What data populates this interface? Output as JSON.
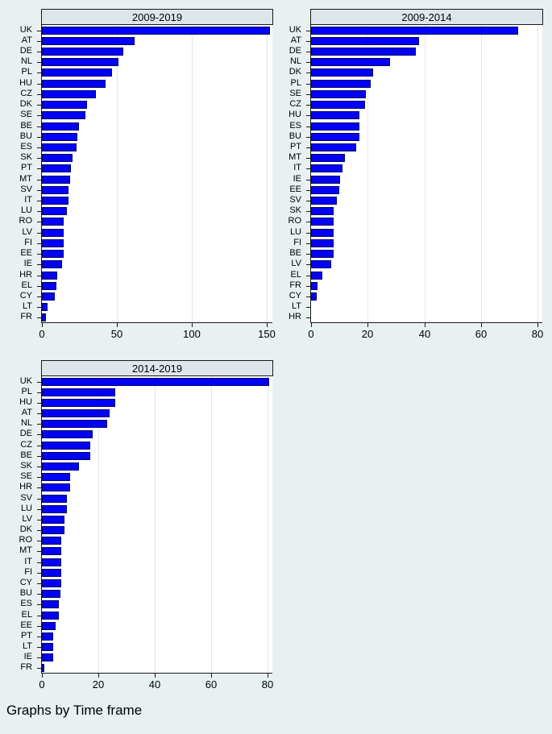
{
  "figure": {
    "note": "Graphs by Time frame",
    "background_color": "#e8f0f2",
    "strip_color": "#dde7eb",
    "gridline_color": "#dee8eb",
    "bar_color": "#0202f5",
    "bar_border_color": "#000066"
  },
  "chart_data": [
    {
      "type": "bar",
      "orientation": "horizontal",
      "title": "2009-2019",
      "categories": [
        "UK",
        "AT",
        "DE",
        "NL",
        "PL",
        "HU",
        "CZ",
        "DK",
        "SE",
        "BE",
        "BU",
        "ES",
        "SK",
        "PT",
        "MT",
        "SV",
        "IT",
        "LU",
        "RO",
        "LV",
        "FI",
        "EE",
        "IE",
        "HR",
        "EL",
        "CY",
        "LT",
        "FR"
      ],
      "values": [
        152.5,
        62,
        54.5,
        51,
        47,
        42.5,
        36,
        30,
        29,
        25,
        23.5,
        23,
        20.5,
        19.5,
        19,
        18,
        17.8,
        16.8,
        14.8,
        14.7,
        14.6,
        14.5,
        13.5,
        10,
        9.9,
        8.7,
        3.6,
        2.7
      ],
      "xticks": [
        0,
        50,
        100,
        150
      ],
      "xlim": [
        0,
        154
      ],
      "xlabel": "",
      "ylabel": "",
      "grid": true,
      "legend": "none"
    },
    {
      "type": "bar",
      "orientation": "horizontal",
      "title": "2009-2014",
      "categories": [
        "UK",
        "AT",
        "DE",
        "NL",
        "DK",
        "PL",
        "SE",
        "CZ",
        "HU",
        "ES",
        "BU",
        "PT",
        "MT",
        "IT",
        "IE",
        "EE",
        "SV",
        "SK",
        "RO",
        "LU",
        "FI",
        "BE",
        "LV",
        "EL",
        "FR",
        "CY",
        "LT",
        "HR"
      ],
      "values": [
        73,
        38,
        37,
        28,
        22,
        21,
        19.2,
        19,
        17.2,
        17.1,
        17,
        16,
        12,
        11,
        10.1,
        10,
        9.1,
        8.1,
        8,
        8,
        8,
        8,
        7,
        4,
        2.2,
        2.1,
        0,
        0
      ],
      "xticks": [
        0,
        20,
        40,
        60,
        80
      ],
      "xlim": [
        0,
        81.6
      ],
      "xlabel": "",
      "ylabel": "",
      "grid": true,
      "legend": "none"
    },
    {
      "type": "bar",
      "orientation": "horizontal",
      "title": "2014-2019",
      "categories": [
        "UK",
        "PL",
        "HU",
        "AT",
        "NL",
        "DE",
        "CZ",
        "BE",
        "SK",
        "SE",
        "HR",
        "SV",
        "LU",
        "LV",
        "DK",
        "RO",
        "MT",
        "IT",
        "FI",
        "CY",
        "BU",
        "ES",
        "EL",
        "EE",
        "PT",
        "LT",
        "IE",
        "FR"
      ],
      "values": [
        80.5,
        26,
        25.9,
        24,
        23,
        18,
        17.1,
        17,
        13,
        10,
        9.9,
        8.9,
        8.8,
        8,
        7.9,
        6.9,
        6.9,
        6.9,
        6.8,
        6.8,
        6.7,
        6.1,
        6,
        4.9,
        4.1,
        4,
        4,
        0.9
      ],
      "xticks": [
        0,
        20,
        40,
        60,
        80
      ],
      "xlim": [
        0,
        81.6
      ],
      "xlabel": "",
      "ylabel": "",
      "grid": true,
      "legend": "none"
    }
  ]
}
